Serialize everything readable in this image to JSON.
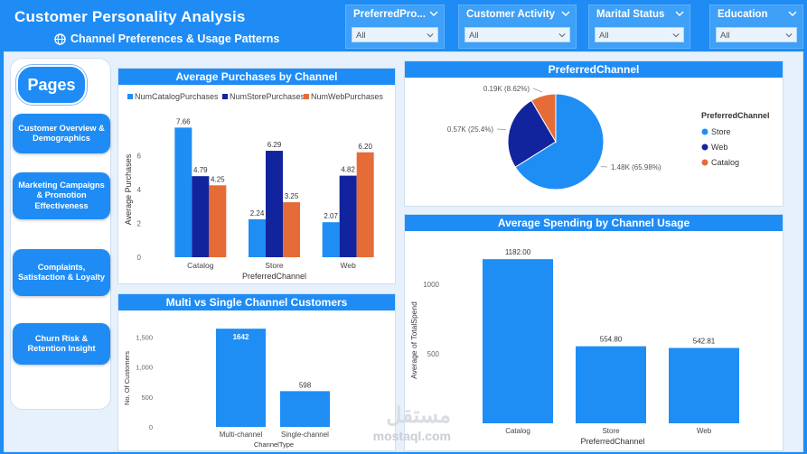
{
  "header": {
    "title": "Customer Personality Analysis",
    "subtitle": "Channel Preferences & Usage Patterns",
    "globe_icon": "globe-icon"
  },
  "slicers": [
    {
      "label": "PreferredPro...",
      "value": "All"
    },
    {
      "label": "Customer Activity",
      "value": "All"
    },
    {
      "label": "Marital Status",
      "value": "All"
    },
    {
      "label": "Education",
      "value": "All"
    }
  ],
  "sidebar": {
    "pages_label": "Pages",
    "items": [
      {
        "label": "Customer Overview & Demographics"
      },
      {
        "label": "Marketing Campaigns & Promotion Effectiveness"
      },
      {
        "label": "Complaints, Satisfaction & Loyalty"
      },
      {
        "label": "Churn Risk & Retention Insight"
      }
    ]
  },
  "watermark": {
    "text": "مستقل",
    "sub": "mostaql.com"
  },
  "chart_data": [
    {
      "id": "avg_purchases",
      "type": "bar",
      "title": "Average Purchases by Channel",
      "categories": [
        "Catalog",
        "Store",
        "Web"
      ],
      "series": [
        {
          "name": "NumCatalogPurchases",
          "color": "#1e8ef5",
          "values": [
            7.66,
            2.24,
            2.07
          ],
          "labels": [
            "7.66",
            "2.24",
            "2.07"
          ]
        },
        {
          "name": "NumStorePurchases",
          "color": "#12239e",
          "values": [
            4.79,
            6.29,
            4.82
          ],
          "labels": [
            "4.79",
            "6.29",
            "4.82"
          ]
        },
        {
          "name": "NumWebPurchases",
          "color": "#e66c37",
          "values": [
            4.25,
            3.25,
            6.2
          ],
          "labels": [
            "4.25",
            "3.25",
            "6.20"
          ]
        }
      ],
      "xlabel": "PreferredChannel",
      "ylabel": "Average Purchases",
      "yticks": [
        0,
        2,
        4,
        6
      ],
      "ylim": [
        0,
        8
      ]
    },
    {
      "id": "preferred_channel",
      "type": "pie",
      "title": "PreferredChannel",
      "legend_title": "PreferredChannel",
      "slices": [
        {
          "name": "Store",
          "value": 1.48,
          "label": "1.48K (65.98%)",
          "color": "#1e8ef5"
        },
        {
          "name": "Web",
          "value": 0.57,
          "label": "0.57K (25.4%)",
          "color": "#12239e"
        },
        {
          "name": "Catalog",
          "value": 0.19,
          "label": "0.19K (8.62%)",
          "color": "#e66c37"
        }
      ]
    },
    {
      "id": "multi_single",
      "type": "bar",
      "title": "Multi vs Single Channel Customers",
      "categories": [
        "Multi-channel",
        "Single-channel"
      ],
      "values": [
        1642,
        598
      ],
      "labels": [
        "1642",
        "598"
      ],
      "xlabel": "ChannelType",
      "ylabel": "No. Of Customers",
      "yticks": [
        0,
        500,
        1000,
        1500
      ],
      "ytick_labels": [
        "0",
        "500",
        "1,000",
        "1,500"
      ],
      "ylim": [
        0,
        1750
      ],
      "color": "#1e8ef5"
    },
    {
      "id": "avg_spending",
      "type": "bar",
      "title": "Average Spending by Channel Usage",
      "categories": [
        "Catalog",
        "Store",
        "Web"
      ],
      "values": [
        1182.0,
        554.8,
        542.81
      ],
      "labels": [
        "1182.00",
        "554.80",
        "542.81"
      ],
      "xlabel": "PreferredChannel",
      "ylabel": "Average of TotalSpend",
      "yticks": [
        500,
        1000
      ],
      "ylim": [
        0,
        1300
      ],
      "color": "#1e8ef5"
    }
  ]
}
